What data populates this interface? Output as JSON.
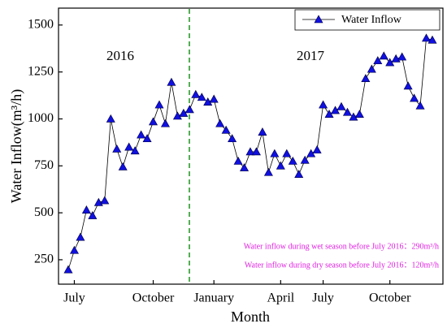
{
  "chart_data": {
    "type": "line",
    "x_label": "Month",
    "y_label": "Water Inflow(m³/h)",
    "annotations": [
      "2016",
      "2017",
      "Water inflow during wet season before July 2016：290m³/h",
      "Water inflow during dry season before July 2016：120m³/h"
    ],
    "categories": [
      null,
      "July",
      null,
      null,
      null,
      null,
      null,
      null,
      null,
      null,
      null,
      null,
      null,
      null,
      "October",
      null,
      null,
      null,
      null,
      null,
      null,
      null,
      null,
      null,
      "January",
      null,
      null,
      null,
      null,
      null,
      null,
      null,
      null,
      null,
      null,
      "April",
      null,
      null,
      null,
      null,
      null,
      null,
      "July",
      null,
      null,
      null,
      null,
      null,
      null,
      null,
      null,
      null,
      null,
      "October",
      null,
      null,
      null,
      null,
      null,
      null,
      null
    ],
    "series": [
      {
        "name": "Water Inflow",
        "color": "#1010e0",
        "values": [
          197,
          300,
          370,
          515,
          485,
          555,
          565,
          1000,
          840,
          745,
          850,
          830,
          915,
          895,
          985,
          1075,
          975,
          1195,
          1015,
          1030,
          1050,
          1130,
          1115,
          1090,
          1105,
          975,
          940,
          895,
          775,
          740,
          825,
          825,
          930,
          715,
          815,
          750,
          815,
          775,
          705,
          780,
          815,
          835,
          1075,
          1025,
          1045,
          1065,
          1035,
          1010,
          1025,
          1215,
          1265,
          1310,
          1335,
          1300,
          1320,
          1330,
          1175,
          1110,
          1070,
          1430,
          1420
        ]
      }
    ],
    "ylim": [
      120,
      1590
    ],
    "yticks": [
      250,
      500,
      750,
      1000,
      1250,
      1500
    ],
    "legend": "top-right"
  }
}
